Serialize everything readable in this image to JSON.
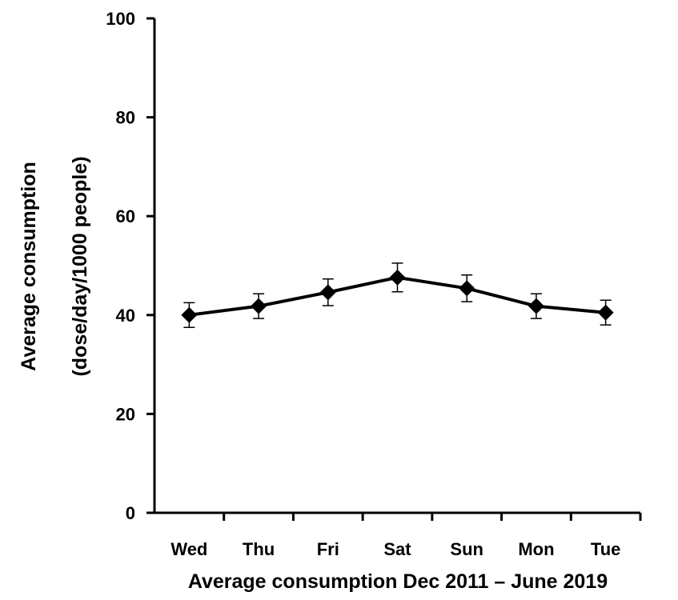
{
  "chart_data": {
    "type": "line",
    "categories": [
      "Wed",
      "Thu",
      "Fri",
      "Sat",
      "Sun",
      "Mon",
      "Tue"
    ],
    "series": [
      {
        "values": [
          40.0,
          41.8,
          44.6,
          47.6,
          45.4,
          41.8,
          40.5
        ],
        "error": [
          2.5,
          2.5,
          2.7,
          2.9,
          2.7,
          2.5,
          2.5
        ],
        "color": "#000000",
        "marker": "diamond"
      }
    ],
    "xlabel": "Average consumption  Dec 2011 – June 2019",
    "ylabel_line1": "Average consumption",
    "ylabel_line2": "(dose/day/1000 people)",
    "ylim": [
      0,
      100
    ],
    "yticks": [
      0,
      20,
      40,
      60,
      80,
      100
    ],
    "grid": false,
    "legend": "none"
  }
}
